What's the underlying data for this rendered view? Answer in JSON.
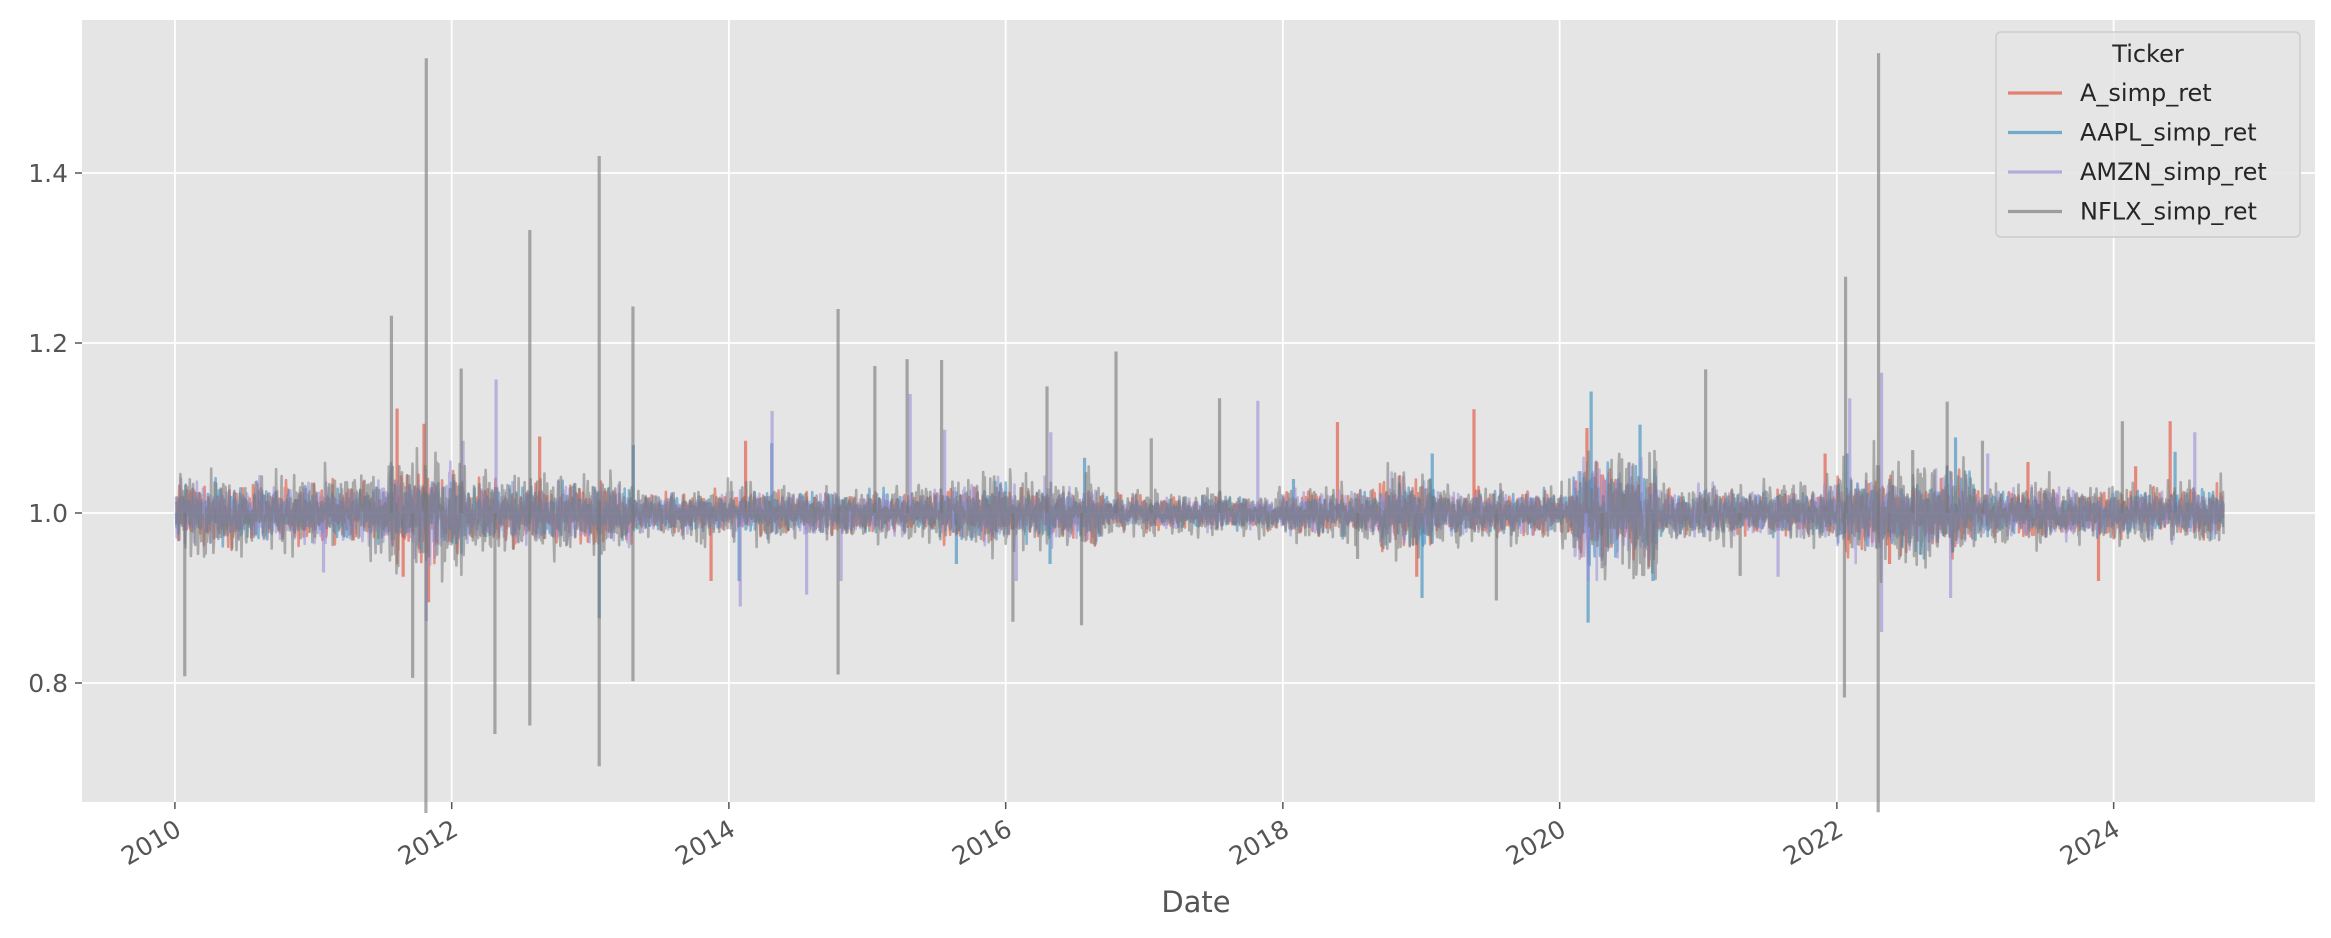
{
  "chart_data": {
    "type": "line",
    "xlabel": "Date",
    "ylabel": "",
    "title": "",
    "xlim": [
      "2009-05-01",
      "2025-06-15"
    ],
    "ylim": [
      0.66,
      1.58
    ],
    "x_ticks": [
      "2010",
      "2012",
      "2014",
      "2016",
      "2018",
      "2020",
      "2022",
      "2024"
    ],
    "y_ticks": [
      "0.8",
      "1.0",
      "1.2",
      "1.4"
    ],
    "grid": true,
    "legend": {
      "title": "Ticker",
      "placement": "top-right"
    },
    "series": [
      {
        "name": "A_simp_ret",
        "color": "#E24A33",
        "points": [
          [
            "2010-01-04",
            1.0
          ],
          [
            "2011-08-10",
            1.123
          ],
          [
            "2011-08-26",
            0.925
          ],
          [
            "2011-10-20",
            1.105
          ],
          [
            "2011-11-01",
            0.895
          ],
          [
            "2012-08-20",
            1.09
          ],
          [
            "2013-11-15",
            0.92
          ],
          [
            "2014-02-14",
            1.085
          ],
          [
            "2018-05-25",
            1.107
          ],
          [
            "2018-12-20",
            0.925
          ],
          [
            "2019-05-20",
            1.122
          ],
          [
            "2020-03-13",
            1.1
          ],
          [
            "2021-12-01",
            1.07
          ],
          [
            "2022-05-20",
            0.94
          ],
          [
            "2023-05-20",
            1.06
          ],
          [
            "2023-11-22",
            0.92
          ],
          [
            "2024-02-28",
            1.055
          ],
          [
            "2024-05-29",
            1.108
          ],
          [
            "2024-10-18",
            1.0
          ]
        ]
      },
      {
        "name": "AAPL_simp_ret",
        "color": "#348ABD",
        "points": [
          [
            "2010-01-04",
            1.0
          ],
          [
            "2013-01-24",
            0.876
          ],
          [
            "2013-04-24",
            1.08
          ],
          [
            "2014-01-28",
            0.92
          ],
          [
            "2014-04-24",
            1.082
          ],
          [
            "2015-08-24",
            0.94
          ],
          [
            "2016-04-27",
            0.94
          ],
          [
            "2016-07-27",
            1.065
          ],
          [
            "2018-01-29",
            1.04
          ],
          [
            "2019-01-03",
            0.9
          ],
          [
            "2019-01-30",
            1.07
          ],
          [
            "2020-03-16",
            0.871
          ],
          [
            "2020-03-24",
            1.143
          ],
          [
            "2020-07-31",
            1.104
          ],
          [
            "2020-09-03",
            0.92
          ],
          [
            "2022-01-28",
            1.07
          ],
          [
            "2022-11-10",
            1.089
          ],
          [
            "2024-06-11",
            1.072
          ],
          [
            "2024-10-18",
            1.0
          ]
        ]
      },
      {
        "name": "AMZN_simp_ret",
        "color": "#988ED5",
        "points": [
          [
            "2010-01-04",
            1.0
          ],
          [
            "2011-01-28",
            0.93
          ],
          [
            "2011-10-26",
            0.873
          ],
          [
            "2012-01-31",
            1.085
          ],
          [
            "2012-04-27",
            1.157
          ],
          [
            "2014-01-31",
            0.89
          ],
          [
            "2014-04-25",
            1.12
          ],
          [
            "2014-07-25",
            0.904
          ],
          [
            "2014-10-24",
            0.92
          ],
          [
            "2015-04-24",
            1.14
          ],
          [
            "2015-07-24",
            1.098
          ],
          [
            "2016-01-29",
            0.92
          ],
          [
            "2016-04-29",
            1.095
          ],
          [
            "2017-10-27",
            1.132
          ],
          [
            "2018-02-02",
            1.03
          ],
          [
            "2020-03-16",
            0.92
          ],
          [
            "2021-07-30",
            0.925
          ],
          [
            "2022-02-04",
            1.135
          ],
          [
            "2022-04-29",
            0.86
          ],
          [
            "2022-04-29",
            1.165
          ],
          [
            "2022-10-28",
            0.9
          ],
          [
            "2023-02-03",
            1.07
          ],
          [
            "2024-08-02",
            1.095
          ],
          [
            "2024-10-18",
            1.0
          ]
        ]
      },
      {
        "name": "NFLX_simp_ret",
        "color": "#777777",
        "points": [
          [
            "2010-01-04",
            1.0
          ],
          [
            "2010-01-27",
            0.808
          ],
          [
            "2011-07-26",
            1.232
          ],
          [
            "2011-09-20",
            0.806
          ],
          [
            "2011-10-25",
            0.647
          ],
          [
            "2011-10-26",
            1.535
          ],
          [
            "2012-01-26",
            1.17
          ],
          [
            "2012-04-24",
            0.74
          ],
          [
            "2012-07-25",
            0.75
          ],
          [
            "2012-07-25",
            1.333
          ],
          [
            "2013-01-24",
            1.42
          ],
          [
            "2013-01-24",
            0.702
          ],
          [
            "2013-04-23",
            1.243
          ],
          [
            "2013-04-23",
            0.802
          ],
          [
            "2014-10-16",
            0.81
          ],
          [
            "2014-10-16",
            1.24
          ],
          [
            "2015-01-21",
            1.173
          ],
          [
            "2015-04-16",
            1.181
          ],
          [
            "2015-07-16",
            1.18
          ],
          [
            "2016-01-20",
            0.872
          ],
          [
            "2016-04-19",
            1.149
          ],
          [
            "2016-07-19",
            0.868
          ],
          [
            "2016-10-18",
            1.19
          ],
          [
            "2017-01-19",
            1.088
          ],
          [
            "2017-07-18",
            1.135
          ],
          [
            "2018-07-17",
            0.946
          ],
          [
            "2019-07-18",
            0.897
          ],
          [
            "2020-04-22",
            0.935
          ],
          [
            "2021-01-20",
            1.169
          ],
          [
            "2021-04-21",
            0.926
          ],
          [
            "2022-01-21",
            0.783
          ],
          [
            "2022-01-24",
            1.278
          ],
          [
            "2022-04-20",
            0.648
          ],
          [
            "2022-04-21",
            1.541
          ],
          [
            "2022-07-20",
            1.074
          ],
          [
            "2022-10-19",
            1.131
          ],
          [
            "2023-01-20",
            1.085
          ],
          [
            "2024-01-24",
            1.108
          ],
          [
            "2024-10-18",
            1.0
          ]
        ]
      }
    ]
  }
}
